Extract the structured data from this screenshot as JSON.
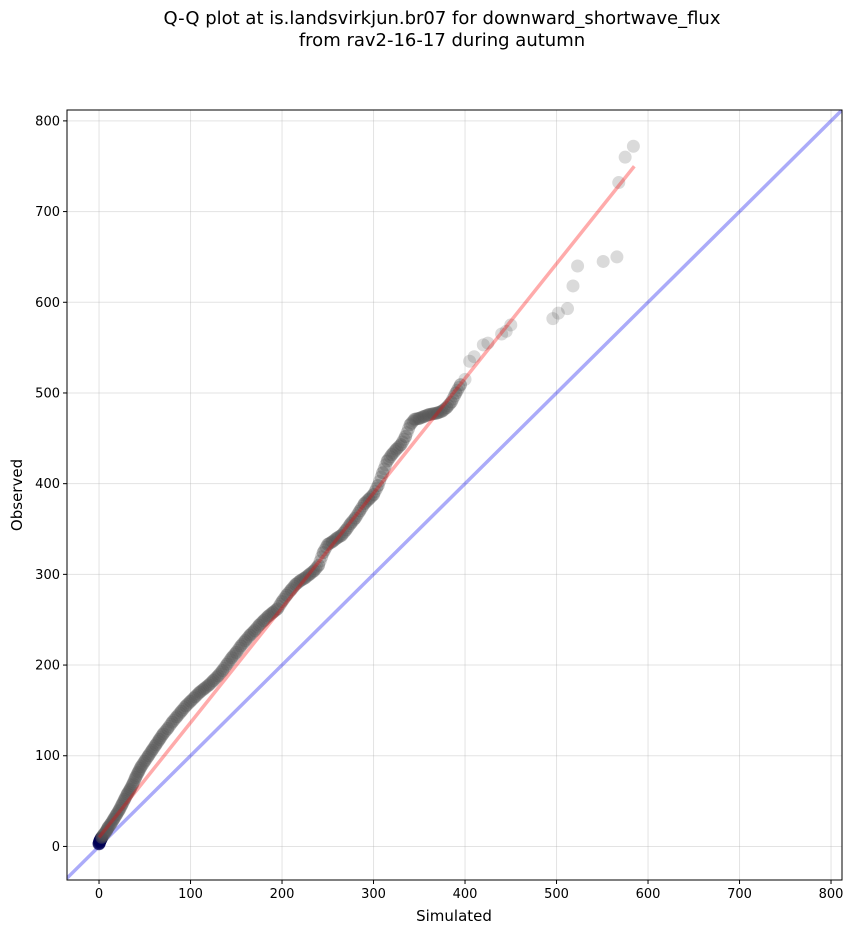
{
  "chart_data": {
    "type": "scatter",
    "title_lines": [
      "Q-Q plot at is.landsvirkjun.br07 for downward_shortwave_flux",
      "from rav2-16-17 during autumn"
    ],
    "xlabel": "Simulated",
    "ylabel": "Observed",
    "xlim": [
      -35,
      812
    ],
    "ylim": [
      -37,
      812
    ],
    "xticks": [
      0,
      100,
      200,
      300,
      400,
      500,
      600,
      700,
      800
    ],
    "yticks": [
      0,
      100,
      200,
      300,
      400,
      500,
      600,
      700,
      800
    ],
    "grid": true,
    "colors": {
      "points": "#555555",
      "low_points": "#000055",
      "fit_line": "#ff0000",
      "identity_line": "#0000ee",
      "grid": "#b0b0b0"
    },
    "fit_line": {
      "x": [
        0,
        585
      ],
      "y": [
        10,
        750
      ]
    },
    "identity_line": {
      "x": [
        -35,
        812
      ],
      "y": [
        -35,
        812
      ]
    },
    "points": {
      "x": [
        0,
        1,
        2,
        3,
        5,
        8,
        10,
        13,
        16,
        19,
        22,
        25,
        28,
        31,
        34,
        37,
        40,
        43,
        46,
        50,
        54,
        58,
        62,
        66,
        70,
        75,
        80,
        85,
        90,
        95,
        100,
        105,
        110,
        115,
        120,
        125,
        130,
        135,
        140,
        145,
        150,
        155,
        160,
        165,
        170,
        175,
        180,
        185,
        190,
        195,
        200,
        205,
        210,
        215,
        220,
        225,
        230,
        235,
        240,
        245,
        250,
        255,
        260,
        265,
        270,
        275,
        280,
        285,
        290,
        295,
        300,
        305,
        310,
        315,
        320,
        325,
        330,
        335,
        340,
        345,
        350,
        355,
        360,
        365,
        370,
        375,
        380,
        385,
        390,
        395,
        400,
        405,
        410,
        420,
        425,
        440,
        445,
        450,
        496,
        502,
        512,
        518,
        523,
        551,
        566,
        568,
        575,
        584
      ],
      "y": [
        3,
        6,
        8,
        10,
        13,
        17,
        21,
        25,
        30,
        35,
        40,
        46,
        52,
        58,
        63,
        69,
        76,
        82,
        88,
        94,
        100,
        106,
        112,
        118,
        124,
        130,
        137,
        143,
        149,
        155,
        160,
        165,
        170,
        174,
        178,
        183,
        188,
        194,
        201,
        208,
        214,
        221,
        227,
        233,
        238,
        244,
        249,
        254,
        258,
        262,
        270,
        277,
        283,
        289,
        293,
        296,
        300,
        304,
        310,
        324,
        333,
        336,
        340,
        343,
        349,
        356,
        362,
        370,
        378,
        383,
        388,
        398,
        412,
        425,
        432,
        438,
        443,
        452,
        465,
        471,
        472,
        474,
        476,
        477,
        478,
        480,
        484,
        490,
        500,
        509,
        515,
        535,
        540,
        553,
        555,
        565,
        568,
        575,
        582,
        588,
        593,
        618,
        640,
        645,
        650,
        732,
        760,
        772
      ]
    }
  }
}
